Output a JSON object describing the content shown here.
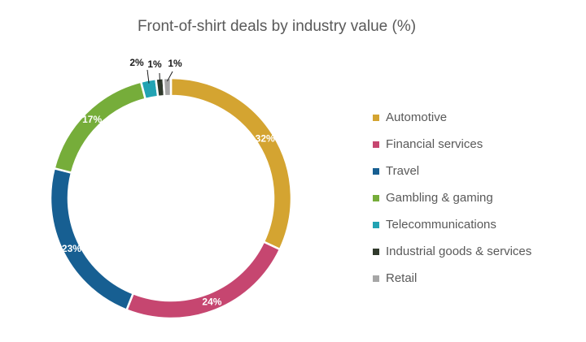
{
  "chart_data": {
    "type": "pie",
    "title": "Front-of-shirt deals by industry value (%)",
    "unit": "%",
    "categories": [
      "Automotive",
      "Financial services",
      "Travel",
      "Gambling & gaming",
      "Telecommunications",
      "Industrial goods & services",
      "Retail"
    ],
    "values": [
      32,
      24,
      23,
      17,
      2,
      1,
      1
    ],
    "data_labels": [
      "32%",
      "24%",
      "23%",
      "17%",
      "2%",
      "1%",
      "1%"
    ],
    "colors": [
      "#d4a431",
      "#c64670",
      "#175f92",
      "#76ad3a",
      "#22a3b3",
      "#303a2c",
      "#a6a6a6"
    ],
    "style": "donut",
    "start_angle": "12 o'clock, clockwise",
    "legend_position": "right"
  }
}
